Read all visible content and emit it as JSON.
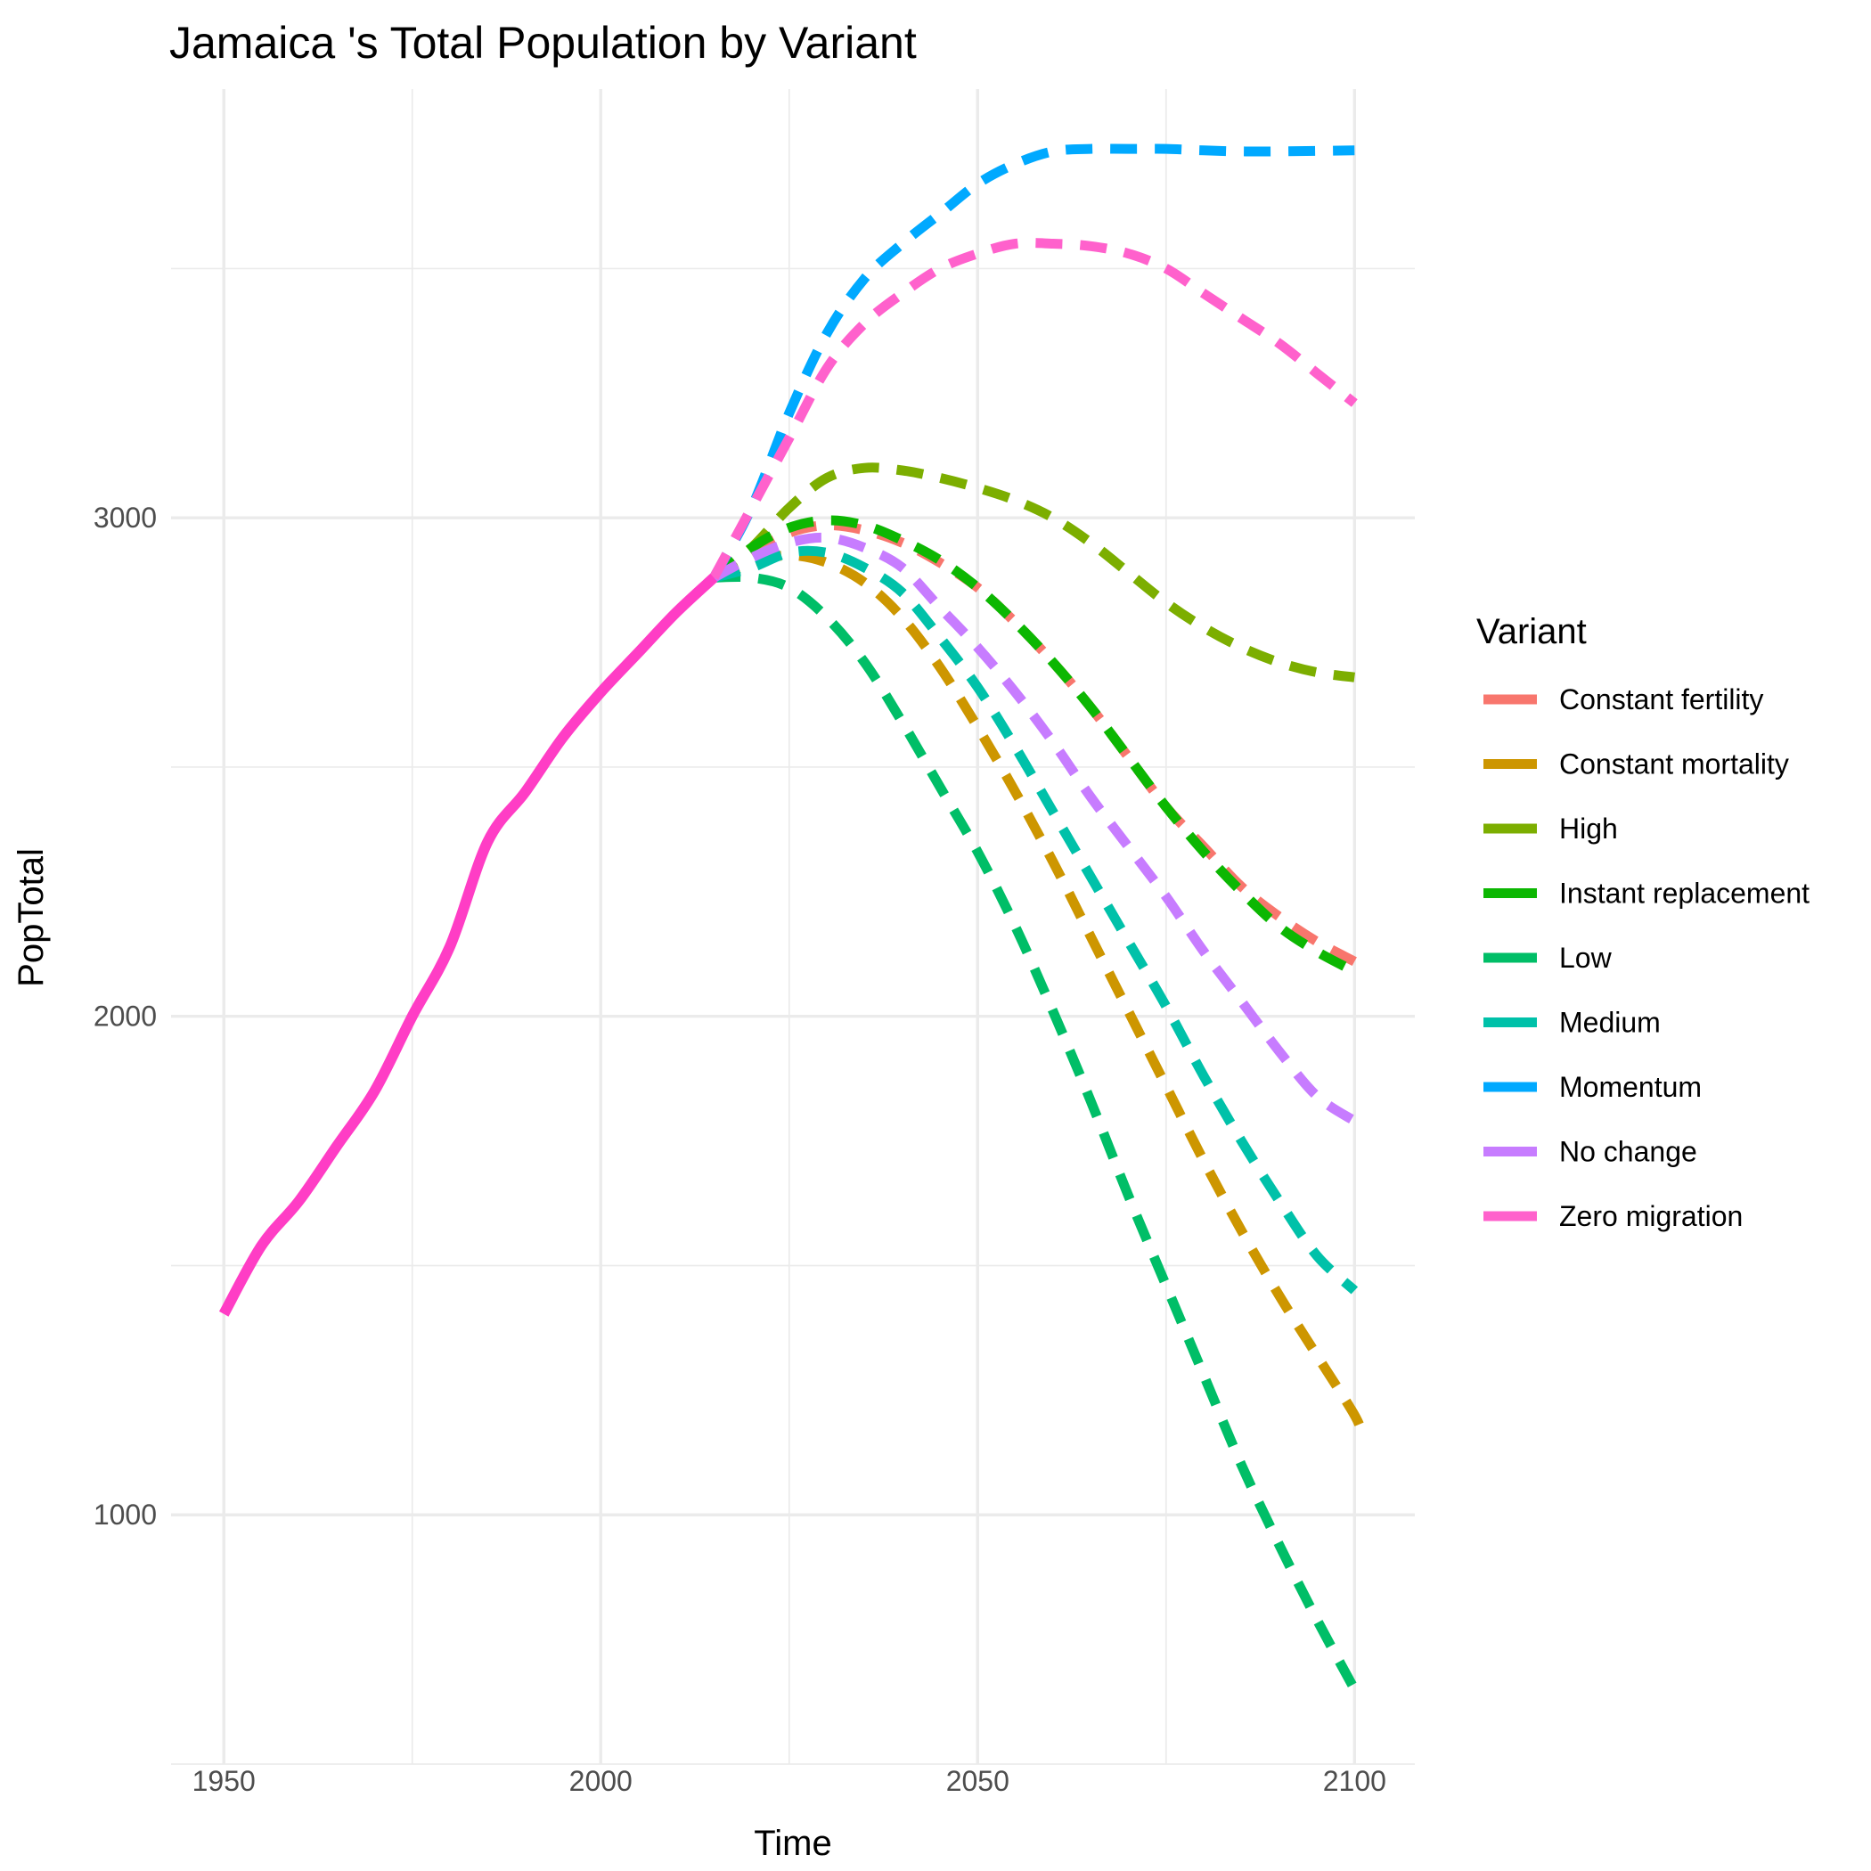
{
  "chart_data": {
    "type": "line",
    "title": "Jamaica 's Total Population by Variant",
    "xlabel": "Time",
    "ylabel": "PopTotal",
    "xlim": [
      1943,
      2108
    ],
    "ylim": [
      500,
      3860
    ],
    "x_ticks": [
      1950,
      2000,
      2050,
      2100
    ],
    "y_ticks": [
      1000,
      2000,
      3000
    ],
    "grid": true,
    "legend_title": "Variant",
    "legend_position": "right",
    "historical": {
      "name": "Zero migration",
      "color": "#FF3DC5",
      "x": [
        1950,
        1955,
        1960,
        1965,
        1970,
        1975,
        1980,
        1985,
        1990,
        1995,
        2000,
        2005,
        2010,
        2015
      ],
      "y": [
        1403,
        1540,
        1630,
        1740,
        1850,
        2000,
        2140,
        2350,
        2450,
        2560,
        2650,
        2730,
        2810,
        2880
      ]
    },
    "series": [
      {
        "name": "Constant fertility",
        "color": "#F8766D",
        "x": [
          2015,
          2020,
          2025,
          2030,
          2035,
          2040,
          2045,
          2050,
          2055,
          2060,
          2065,
          2070,
          2075,
          2080,
          2085,
          2090,
          2095,
          2100
        ],
        "y": [
          2880,
          2930,
          2970,
          2985,
          2975,
          2950,
          2910,
          2860,
          2790,
          2710,
          2620,
          2520,
          2420,
          2340,
          2260,
          2200,
          2150,
          2110
        ]
      },
      {
        "name": "Constant mortality",
        "color": "#CD9600",
        "x": [
          2015,
          2020,
          2025,
          2030,
          2035,
          2040,
          2045,
          2050,
          2055,
          2060,
          2065,
          2070,
          2075,
          2080,
          2085,
          2090,
          2095,
          2100,
          2101
        ],
        "y": [
          2880,
          2910,
          2925,
          2910,
          2870,
          2800,
          2700,
          2580,
          2450,
          2310,
          2160,
          2010,
          1860,
          1710,
          1570,
          1440,
          1320,
          1200,
          1160
        ]
      },
      {
        "name": "High",
        "color": "#7CAE00",
        "x": [
          2015,
          2020,
          2025,
          2030,
          2035,
          2040,
          2045,
          2050,
          2055,
          2060,
          2065,
          2070,
          2075,
          2080,
          2085,
          2090,
          2095,
          2100
        ],
        "y": [
          2880,
          2940,
          3020,
          3080,
          3100,
          3095,
          3080,
          3060,
          3035,
          3000,
          2950,
          2890,
          2830,
          2780,
          2740,
          2710,
          2690,
          2680
        ]
      },
      {
        "name": "Instant replacement",
        "color": "#0CB702",
        "x": [
          2015,
          2020,
          2025,
          2030,
          2035,
          2040,
          2045,
          2050,
          2055,
          2060,
          2065,
          2070,
          2075,
          2080,
          2085,
          2090,
          2095,
          2100
        ],
        "y": [
          2880,
          2940,
          2980,
          2995,
          2985,
          2955,
          2915,
          2860,
          2790,
          2710,
          2620,
          2520,
          2420,
          2330,
          2250,
          2180,
          2130,
          2090
        ]
      },
      {
        "name": "Low",
        "color": "#00BE67",
        "x": [
          2015,
          2020,
          2025,
          2030,
          2035,
          2040,
          2045,
          2050,
          2055,
          2060,
          2065,
          2070,
          2075,
          2080,
          2085,
          2090,
          2095,
          2100
        ],
        "y": [
          2880,
          2880,
          2860,
          2800,
          2710,
          2590,
          2460,
          2330,
          2180,
          2010,
          1830,
          1640,
          1460,
          1280,
          1100,
          940,
          790,
          650
        ]
      },
      {
        "name": "Medium",
        "color": "#00C1A9",
        "x": [
          2015,
          2020,
          2025,
          2030,
          2035,
          2040,
          2045,
          2050,
          2055,
          2060,
          2065,
          2070,
          2075,
          2080,
          2085,
          2090,
          2095,
          2100
        ],
        "y": [
          2880,
          2900,
          2930,
          2930,
          2900,
          2850,
          2760,
          2660,
          2540,
          2410,
          2280,
          2150,
          2020,
          1880,
          1750,
          1630,
          1520,
          1450
        ]
      },
      {
        "name": "Momentum",
        "color": "#00A9FF",
        "x": [
          2015,
          2020,
          2025,
          2030,
          2035,
          2040,
          2045,
          2050,
          2055,
          2060,
          2065,
          2070,
          2075,
          2080,
          2085,
          2090,
          2095,
          2100
        ],
        "y": [
          2880,
          3020,
          3210,
          3370,
          3480,
          3550,
          3610,
          3670,
          3710,
          3735,
          3740,
          3740,
          3740,
          3737,
          3735,
          3735,
          3736,
          3737
        ]
      },
      {
        "name": "No change",
        "color": "#C77CFF",
        "x": [
          2015,
          2020,
          2025,
          2030,
          2035,
          2040,
          2045,
          2050,
          2055,
          2060,
          2065,
          2070,
          2075,
          2080,
          2085,
          2090,
          2095,
          2100
        ],
        "y": [
          2880,
          2920,
          2950,
          2960,
          2940,
          2900,
          2820,
          2740,
          2650,
          2550,
          2440,
          2340,
          2240,
          2130,
          2030,
          1930,
          1840,
          1790
        ]
      },
      {
        "name": "Zero migration",
        "color": "#FF61CC",
        "x": [
          2015,
          2020,
          2025,
          2030,
          2035,
          2040,
          2045,
          2050,
          2055,
          2060,
          2065,
          2070,
          2075,
          2080,
          2085,
          2090,
          2095,
          2100
        ],
        "y": [
          2880,
          3020,
          3160,
          3300,
          3390,
          3450,
          3500,
          3530,
          3550,
          3550,
          3545,
          3530,
          3500,
          3450,
          3400,
          3350,
          3290,
          3230
        ]
      }
    ]
  }
}
